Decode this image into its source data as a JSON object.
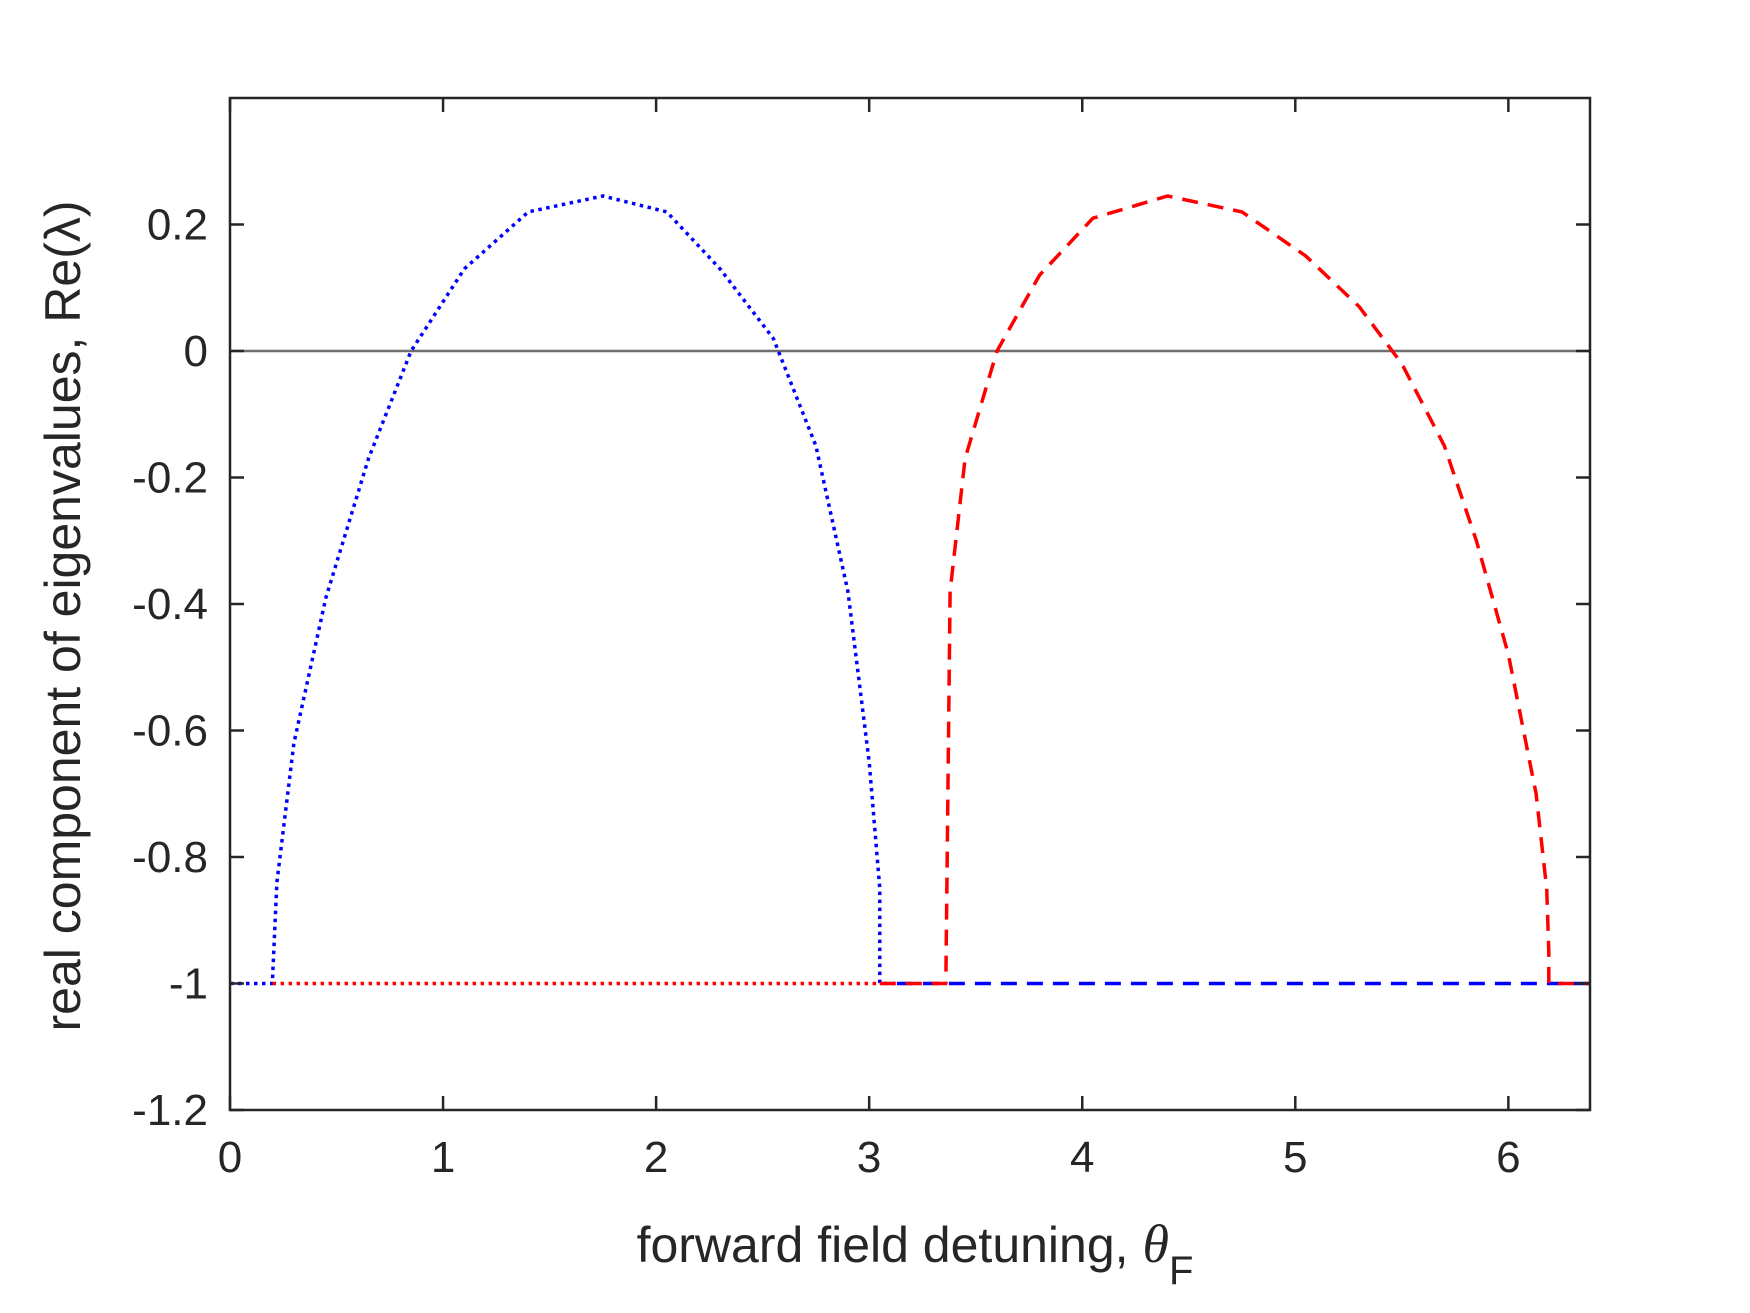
{
  "chart_data": {
    "type": "line",
    "title": "",
    "xlabel": "forward field detuning, ",
    "xlabel_symbol": "θ",
    "xlabel_subscript": "F",
    "ylabel": "real component of eigenvalues, Re(λ)",
    "xlim": [
      0,
      6.3832
    ],
    "ylim": [
      -1.2,
      0.4
    ],
    "xticks": [
      0,
      1,
      2,
      3,
      4,
      5,
      6
    ],
    "yticks": [
      -1.2,
      -1,
      -0.8,
      -0.6,
      -0.4,
      -0.2,
      0,
      0.2
    ],
    "xtick_labels": [
      "0",
      "1",
      "2",
      "3",
      "4",
      "5",
      "6"
    ],
    "ytick_labels": [
      "-1.2",
      "-1",
      "-0.8",
      "-0.6",
      "-0.4",
      "-0.2",
      "0",
      "0.2"
    ],
    "grid": false,
    "legend": "none",
    "reference_line": {
      "y": 0,
      "color": "#6e6e6e"
    },
    "series": [
      {
        "color": "#0000ff",
        "style": "dotted",
        "x": [
          0,
          0.2,
          0.2,
          0.22,
          0.3,
          0.45,
          0.65,
          0.85,
          1.1,
          1.4,
          1.75,
          2.05,
          2.3,
          2.55,
          2.75,
          2.9,
          3.0,
          3.05,
          3.05,
          3.13
        ],
        "y": [
          -1,
          -1,
          -0.99,
          -0.84,
          -0.62,
          -0.39,
          -0.17,
          0.0,
          0.13,
          0.22,
          0.245,
          0.22,
          0.13,
          0.02,
          -0.15,
          -0.38,
          -0.65,
          -0.85,
          -1,
          -1
        ]
      },
      {
        "color": "#0000ff",
        "style": "dashed",
        "x": [
          3.13,
          6.3832
        ],
        "y": [
          -1,
          -1
        ]
      },
      {
        "color": "#ff0000",
        "style": "dotted",
        "x": [
          0.2,
          3.05
        ],
        "y": [
          -1,
          -1
        ]
      },
      {
        "color": "#ff0000",
        "style": "dashed",
        "x": [
          3.05,
          3.36,
          3.36,
          3.38,
          3.45,
          3.6,
          3.8,
          4.05,
          4.4,
          4.75,
          5.05,
          5.3,
          5.5,
          5.7,
          5.85,
          6.0,
          6.13,
          6.18,
          6.19,
          6.19,
          6.3832
        ],
        "y": [
          -1,
          -1,
          -0.99,
          -0.38,
          -0.17,
          0.0,
          0.12,
          0.21,
          0.245,
          0.22,
          0.15,
          0.07,
          -0.02,
          -0.15,
          -0.3,
          -0.48,
          -0.7,
          -0.85,
          -0.95,
          -1,
          -1
        ]
      }
    ]
  }
}
